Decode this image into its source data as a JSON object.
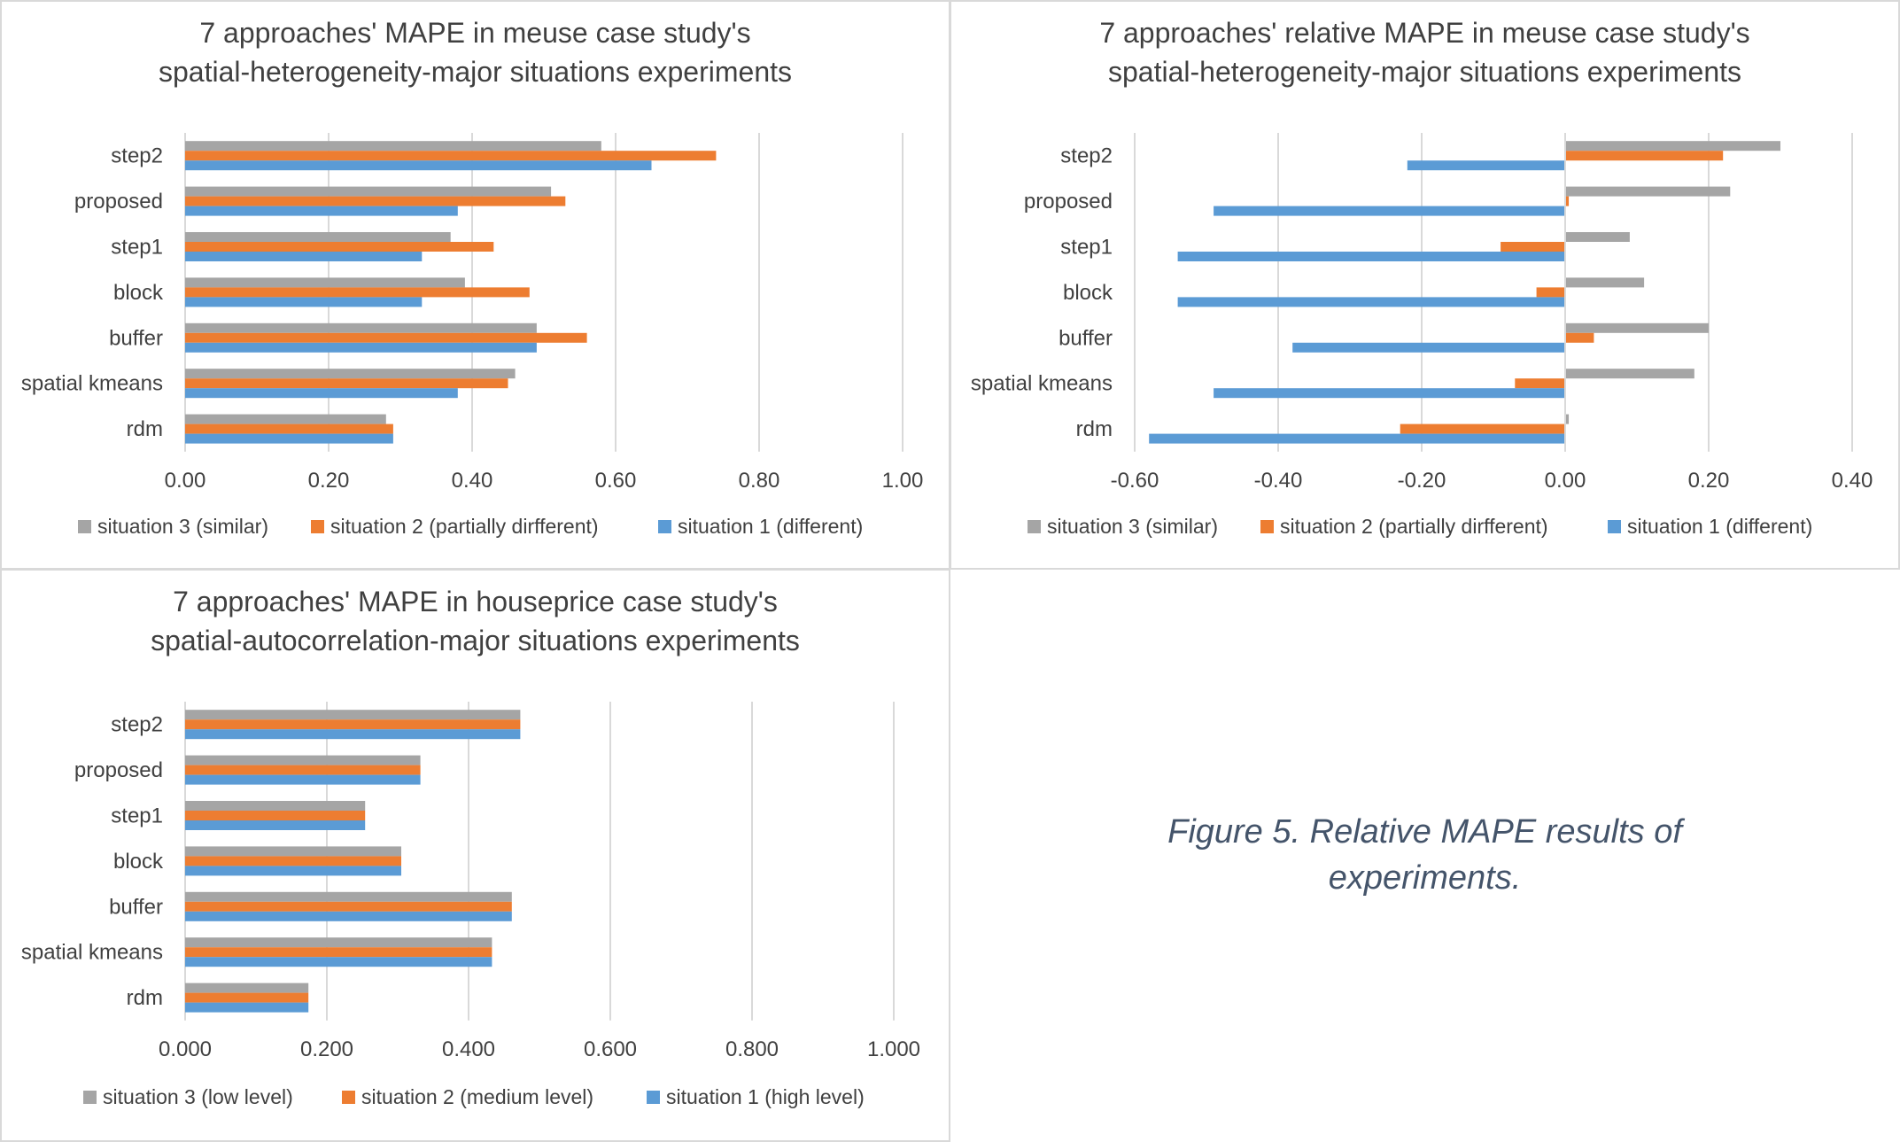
{
  "colors": {
    "situation_3": "#a5a5a5",
    "situation_2": "#ed7d31",
    "situation_1": "#5b9bd5",
    "grid": "#d9d9d9",
    "text": "#404040",
    "caption": "#44546a"
  },
  "caption": "Figure 5. Relative MAPE results of experiments.",
  "chart_data": [
    {
      "type": "bar",
      "orientation": "horizontal",
      "title_lines": [
        "7 approaches' MAPE in meuse case study's",
        "spatial-heterogeneity-major situations experiments"
      ],
      "categories": [
        "step2",
        "proposed",
        "step1",
        "block",
        "buffer",
        "spatial kmeans",
        "rdm"
      ],
      "series": [
        {
          "name": "situation 3 (similar)",
          "color_key": "situation_3",
          "values": [
            0.58,
            0.51,
            0.37,
            0.39,
            0.49,
            0.46,
            0.28
          ]
        },
        {
          "name": "situation 2 (partially dirfferent)",
          "color_key": "situation_2",
          "values": [
            0.74,
            0.53,
            0.43,
            0.48,
            0.56,
            0.45,
            0.29
          ]
        },
        {
          "name": "situation 1 (different)",
          "color_key": "situation_1",
          "values": [
            0.65,
            0.38,
            0.33,
            0.33,
            0.49,
            0.38,
            0.29
          ]
        }
      ],
      "xlim": [
        0,
        1
      ],
      "ticks": [
        0,
        0.2,
        0.4,
        0.6,
        0.8,
        1.0
      ],
      "tick_labels": [
        "0.00",
        "0.20",
        "0.40",
        "0.60",
        "0.80",
        "1.00"
      ],
      "grid": true,
      "legend": "bottom"
    },
    {
      "type": "bar",
      "orientation": "horizontal",
      "title_lines": [
        "7 approaches' relative MAPE in meuse case study's",
        "spatial-heterogeneity-major situations experiments"
      ],
      "categories": [
        "step2",
        "proposed",
        "step1",
        "block",
        "buffer",
        "spatial kmeans",
        "rdm"
      ],
      "series": [
        {
          "name": "situation 3 (similar)",
          "color_key": "situation_3",
          "values": [
            0.3,
            0.23,
            0.09,
            0.11,
            0.2,
            0.18,
            0.005
          ]
        },
        {
          "name": "situation 2 (partially dirfferent)",
          "color_key": "situation_2",
          "values": [
            0.22,
            0.005,
            -0.09,
            -0.04,
            0.04,
            -0.07,
            -0.23
          ]
        },
        {
          "name": "situation 1 (different)",
          "color_key": "situation_1",
          "values": [
            -0.22,
            -0.49,
            -0.54,
            -0.54,
            -0.38,
            -0.49,
            -0.58
          ]
        }
      ],
      "xlim": [
        -0.6,
        0.4
      ],
      "ticks": [
        -0.6,
        -0.4,
        -0.2,
        0,
        0.2,
        0.4
      ],
      "tick_labels": [
        "-0.60",
        "-0.40",
        "-0.20",
        "0.00",
        "0.20",
        "0.40"
      ],
      "grid": true,
      "legend": "bottom"
    },
    {
      "type": "bar",
      "orientation": "horizontal",
      "title_lines": [
        "7 approaches' MAPE in houseprice case study's",
        "spatial-autocorrelation-major situations experiments"
      ],
      "categories": [
        "step2",
        "proposed",
        "step1",
        "block",
        "buffer",
        "spatial kmeans",
        "rdm"
      ],
      "series": [
        {
          "name": "situation 3 (low level)",
          "color_key": "situation_3",
          "values": [
            0.473,
            0.332,
            0.254,
            0.305,
            0.461,
            0.433,
            0.174
          ]
        },
        {
          "name": "situation 2 (medium level)",
          "color_key": "situation_2",
          "values": [
            0.473,
            0.332,
            0.254,
            0.305,
            0.461,
            0.433,
            0.174
          ]
        },
        {
          "name": "situation 1 (high level)",
          "color_key": "situation_1",
          "values": [
            0.473,
            0.332,
            0.254,
            0.305,
            0.461,
            0.433,
            0.174
          ]
        }
      ],
      "xlim": [
        0,
        1
      ],
      "ticks": [
        0,
        0.2,
        0.4,
        0.6,
        0.8,
        1.0
      ],
      "tick_labels": [
        "0.000",
        "0.200",
        "0.400",
        "0.600",
        "0.800",
        "1.000"
      ],
      "grid": true,
      "legend": "bottom"
    }
  ]
}
